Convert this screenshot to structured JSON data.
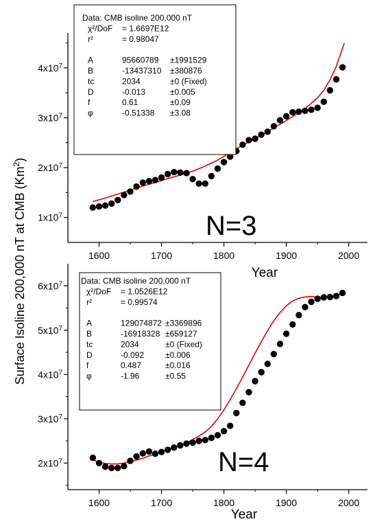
{
  "ylabel_main": "Surface Isoline 200,000 nT at CMB (Km²)",
  "ylabel_parts": {
    "text": "Surface Isoline 200,000 nT at CMB (Km",
    "sup": "2",
    "close": ")"
  },
  "colors": {
    "points": "#000000",
    "fit": "#e00000",
    "axes": "#000000"
  },
  "chart_data": [
    {
      "type": "scatter",
      "title": "",
      "xlabel": "Year",
      "ylabel": "Surface Isoline 200,000 nT at CMB (Km²)",
      "annotation": "N=3",
      "xlim": [
        1550,
        2030
      ],
      "ylim": [
        5000000,
        47000000
      ],
      "x_ticks": [
        1600,
        1700,
        1800,
        1900,
        2000
      ],
      "x_tick_labels": [
        "1600",
        "1700",
        "1800",
        "1900",
        "2000"
      ],
      "y_ticks": [
        10000000,
        20000000,
        30000000,
        40000000
      ],
      "y_tick_labels": [
        {
          "base": "1x10",
          "exp": "7"
        },
        {
          "base": "2x10",
          "exp": "7"
        },
        {
          "base": "3x10",
          "exp": "7"
        },
        {
          "base": "4x10",
          "exp": "7"
        }
      ],
      "stats_box": [
        {
          "label": "Data: CMB isoline 200,000 nT"
        },
        {
          "label": "χ²/DoF",
          "value": "= 1.6697E12"
        },
        {
          "label": "r²",
          "value": "=  0.98047"
        },
        {
          "label": ""
        },
        {
          "label": "A",
          "value": "95660789",
          "err": "±1991529"
        },
        {
          "label": "B",
          "value": "-13437310",
          "err": "±380876"
        },
        {
          "label": "tc",
          "value": "2034",
          "err": "±0   (Fixed)"
        },
        {
          "label": "D",
          "value": "-0.013",
          "err": "±0.005"
        },
        {
          "label": "f",
          "value": "0.61",
          "err": "±0.09"
        },
        {
          "label": "φ",
          "value": "-0.51338",
          "err": "±3.08"
        }
      ],
      "series": [
        {
          "kind": "points",
          "x": [
            1590,
            1600,
            1610,
            1620,
            1630,
            1640,
            1650,
            1660,
            1670,
            1680,
            1690,
            1700,
            1710,
            1720,
            1730,
            1740,
            1750,
            1760,
            1770,
            1780,
            1790,
            1800,
            1810,
            1820,
            1830,
            1840,
            1850,
            1860,
            1870,
            1880,
            1890,
            1900,
            1910,
            1920,
            1930,
            1940,
            1950,
            1960,
            1970,
            1980,
            1990
          ],
          "y": [
            12000000,
            12200000,
            12400000,
            12800000,
            13500000,
            14500000,
            15200000,
            16200000,
            17000000,
            17300000,
            17500000,
            18000000,
            18700000,
            19100000,
            19000000,
            18900000,
            17700000,
            16800000,
            16800000,
            18300000,
            19800000,
            21100000,
            22200000,
            23300000,
            24600000,
            25500000,
            25800000,
            26600000,
            27200000,
            28300000,
            29500000,
            30300000,
            31100000,
            31200000,
            31400000,
            31600000,
            32000000,
            33200000,
            35500000,
            37700000,
            40100000
          ]
        },
        {
          "kind": "fit",
          "x": [
            1590,
            1610,
            1630,
            1650,
            1670,
            1690,
            1710,
            1730,
            1750,
            1770,
            1790,
            1810,
            1830,
            1850,
            1870,
            1890,
            1910,
            1930,
            1950,
            1960,
            1970,
            1980,
            1993
          ],
          "y": [
            13200000,
            13900000,
            14700000,
            15500000,
            16300000,
            17000000,
            17800000,
            18500000,
            19300000,
            20300000,
            21500000,
            23000000,
            24500000,
            25800000,
            27200000,
            28700000,
            30200000,
            31800000,
            34000000,
            35500000,
            37600000,
            40300000,
            45000000
          ]
        }
      ]
    },
    {
      "type": "scatter",
      "title": "",
      "xlabel": "Year",
      "ylabel": "Surface Isoline 200,000 nT at CMB (Km²)",
      "annotation": "N=4",
      "xlim": [
        1550,
        2030
      ],
      "ylim": [
        14000000,
        65000000
      ],
      "x_ticks": [
        1600,
        1700,
        1800,
        1900,
        2000
      ],
      "x_tick_labels": [
        "1600",
        "1700",
        "1800",
        "1900",
        "2000"
      ],
      "y_ticks": [
        20000000,
        30000000,
        40000000,
        50000000,
        60000000
      ],
      "y_tick_labels": [
        {
          "base": "2x10",
          "exp": "7"
        },
        {
          "base": "3x10",
          "exp": "7"
        },
        {
          "base": "4x10",
          "exp": "7"
        },
        {
          "base": "5x10",
          "exp": "7"
        },
        {
          "base": "6x10",
          "exp": "7"
        }
      ],
      "stats_box": [
        {
          "label": "Data: CMB isoline 200,000 nT"
        },
        {
          "label": "χ²/DoF",
          "value": "= 1.0526E12"
        },
        {
          "label": "r²",
          "value": "=  0.99574"
        },
        {
          "label": ""
        },
        {
          "label": "A",
          "value": "129074872",
          "err": "±3369896"
        },
        {
          "label": "B",
          "value": "-16918328",
          "err": "±659127"
        },
        {
          "label": "tc",
          "value": "2034",
          "err": "±0   (Fixed)"
        },
        {
          "label": "D",
          "value": "-0.092",
          "err": "±0.006"
        },
        {
          "label": "f",
          "value": "0.487",
          "err": "±0.016"
        },
        {
          "label": "φ",
          "value": "-1.96",
          "err": "±0.55"
        }
      ],
      "series": [
        {
          "kind": "points",
          "x": [
            1590,
            1600,
            1610,
            1620,
            1630,
            1640,
            1650,
            1660,
            1670,
            1680,
            1690,
            1700,
            1710,
            1720,
            1730,
            1740,
            1750,
            1760,
            1770,
            1780,
            1790,
            1800,
            1810,
            1820,
            1830,
            1840,
            1850,
            1860,
            1870,
            1880,
            1890,
            1900,
            1910,
            1920,
            1930,
            1940,
            1950,
            1960,
            1970,
            1980,
            1990
          ],
          "y": [
            21200000,
            20000000,
            19200000,
            18900000,
            18900000,
            19300000,
            20500000,
            21500000,
            22200000,
            22600000,
            22100000,
            22500000,
            23000000,
            23500000,
            24000000,
            24400000,
            24600000,
            25000000,
            25200000,
            25700000,
            26300000,
            27200000,
            28400000,
            31300000,
            33600000,
            36000000,
            38500000,
            40500000,
            42400000,
            44600000,
            46900000,
            49200000,
            51300000,
            53400000,
            55200000,
            56400000,
            57100000,
            57400000,
            57500000,
            57700000,
            58400000
          ]
        },
        {
          "kind": "fit",
          "x": [
            1590,
            1600,
            1610,
            1620,
            1630,
            1640,
            1650,
            1660,
            1670,
            1680,
            1690,
            1700,
            1710,
            1720,
            1730,
            1740,
            1750,
            1760,
            1770,
            1780,
            1790,
            1800,
            1810,
            1820,
            1830,
            1840,
            1850,
            1860,
            1870,
            1880,
            1890,
            1900,
            1910,
            1920,
            1930,
            1940,
            1950,
            1960,
            1970,
            1980,
            1990
          ],
          "y": [
            20700000,
            20200000,
            19900000,
            19800000,
            19800000,
            20000000,
            20300000,
            20700000,
            21100000,
            21600000,
            22000000,
            22500000,
            23000000,
            23500000,
            24000000,
            24600000,
            25300000,
            26100000,
            27000000,
            28300000,
            30000000,
            32000000,
            34300000,
            36800000,
            39400000,
            42100000,
            44800000,
            47400000,
            49900000,
            52100000,
            54000000,
            55500000,
            56600000,
            57200000,
            57500000,
            57600000,
            57500000,
            57300000,
            57300000,
            57600000,
            58500000
          ]
        }
      ]
    }
  ]
}
